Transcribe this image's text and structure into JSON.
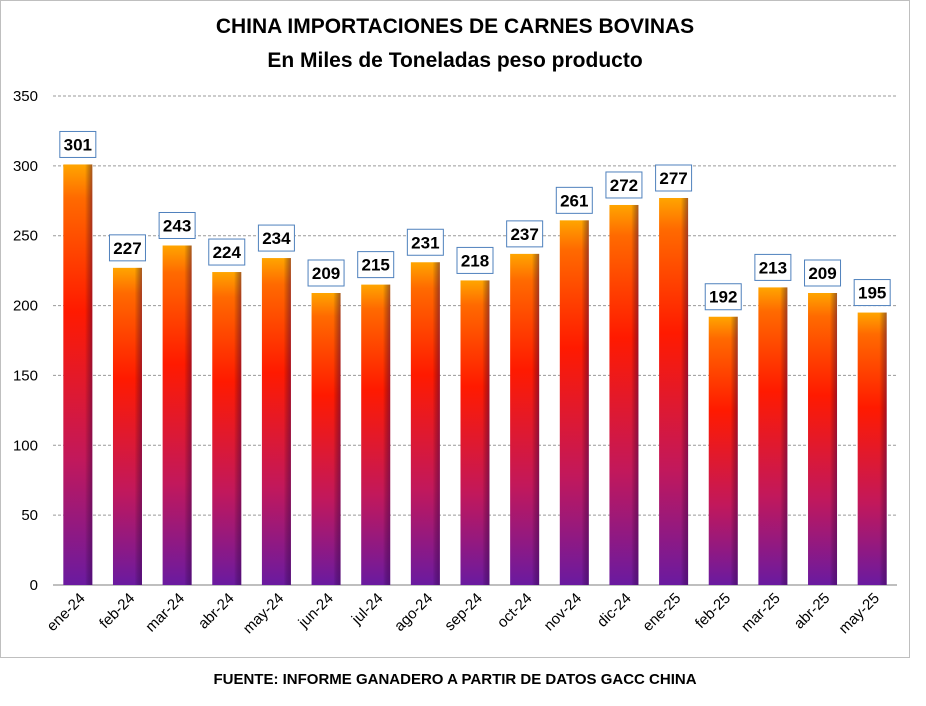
{
  "chart_data": {
    "type": "bar",
    "title": "CHINA IMPORTACIONES DE CARNES BOVINAS",
    "subtitle": "En Miles de Toneladas peso producto",
    "xlabel": "",
    "ylabel": "",
    "categories": [
      "ene-24",
      "feb-24",
      "mar-24",
      "abr-24",
      "may-24",
      "jun-24",
      "jul-24",
      "ago-24",
      "sep-24",
      "oct-24",
      "nov-24",
      "dic-24",
      "ene-25",
      "feb-25",
      "mar-25",
      "abr-25",
      "may-25"
    ],
    "values": [
      301,
      227,
      243,
      224,
      234,
      209,
      215,
      231,
      218,
      237,
      261,
      272,
      277,
      192,
      213,
      209,
      195
    ],
    "ylim": [
      0,
      350
    ],
    "yticks": [
      0,
      50,
      100,
      150,
      200,
      250,
      300,
      350
    ],
    "grid": true,
    "legend": "none",
    "data_labels": true,
    "colors": {
      "bar_top": "#ffa500",
      "bar_mid": "#ff1a00",
      "bar_bottom": "#6a1aa0",
      "grid": "#9a9a9a",
      "label_border": "#4f81bd"
    }
  },
  "source_note": "FUENTE: INFORME GANADERO A PARTIR DE DATOS GACC CHINA"
}
